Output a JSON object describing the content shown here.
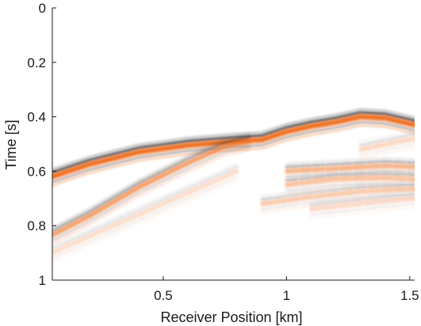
{
  "chart_data": {
    "type": "heatmap",
    "title": "",
    "xlabel": "Receiver Position [km]",
    "ylabel": "Time [s]",
    "xlim": [
      0.05,
      1.52
    ],
    "ylim": [
      0,
      1
    ],
    "y_reversed": true,
    "xticks": [
      0.5,
      1,
      1.5
    ],
    "xtick_labels": [
      "0.5",
      "1",
      "1.5"
    ],
    "yticks": [
      0,
      0.2,
      0.4,
      0.6,
      0.8,
      1
    ],
    "ytick_labels": [
      "0",
      "0.2",
      "0.4",
      "0.6",
      "0.8",
      "1"
    ],
    "grid": false,
    "colormap": {
      "positive": "#f07020",
      "negative": "#303030",
      "zero": "#ffffff"
    },
    "events": [
      {
        "name": "direct-arrival",
        "amplitude": 1.0,
        "points": [
          [
            0.05,
            0.62
          ],
          [
            0.2,
            0.575
          ],
          [
            0.4,
            0.53
          ],
          [
            0.6,
            0.505
          ],
          [
            0.8,
            0.49
          ],
          [
            0.9,
            0.485
          ],
          [
            1.0,
            0.455
          ],
          [
            1.1,
            0.435
          ],
          [
            1.2,
            0.42
          ],
          [
            1.3,
            0.4
          ],
          [
            1.4,
            0.405
          ],
          [
            1.52,
            0.43
          ]
        ]
      },
      {
        "name": "steep-reflection",
        "amplitude": 0.55,
        "points": [
          [
            0.05,
            0.835
          ],
          [
            0.2,
            0.765
          ],
          [
            0.4,
            0.66
          ],
          [
            0.6,
            0.57
          ],
          [
            0.75,
            0.51
          ],
          [
            0.85,
            0.49
          ]
        ]
      },
      {
        "name": "faint-deep-reflection",
        "amplitude": 0.18,
        "points": [
          [
            0.05,
            0.9
          ],
          [
            0.3,
            0.8
          ],
          [
            0.55,
            0.7
          ],
          [
            0.8,
            0.6
          ]
        ]
      },
      {
        "name": "right-reflection-1",
        "amplitude": 0.45,
        "points": [
          [
            1.0,
            0.6
          ],
          [
            1.2,
            0.59
          ],
          [
            1.4,
            0.58
          ],
          [
            1.52,
            0.585
          ]
        ]
      },
      {
        "name": "right-reflection-2",
        "amplitude": 0.35,
        "points": [
          [
            1.0,
            0.65
          ],
          [
            1.2,
            0.63
          ],
          [
            1.4,
            0.625
          ],
          [
            1.52,
            0.63
          ]
        ]
      },
      {
        "name": "right-reflection-3",
        "amplitude": 0.3,
        "points": [
          [
            0.9,
            0.72
          ],
          [
            1.1,
            0.695
          ],
          [
            1.3,
            0.675
          ],
          [
            1.52,
            0.665
          ]
        ]
      },
      {
        "name": "right-reflection-4",
        "amplitude": 0.2,
        "points": [
          [
            1.1,
            0.74
          ],
          [
            1.3,
            0.72
          ],
          [
            1.52,
            0.7
          ]
        ]
      },
      {
        "name": "right-reflection-5",
        "amplitude": 0.22,
        "points": [
          [
            1.3,
            0.52
          ],
          [
            1.52,
            0.48
          ]
        ]
      }
    ]
  }
}
